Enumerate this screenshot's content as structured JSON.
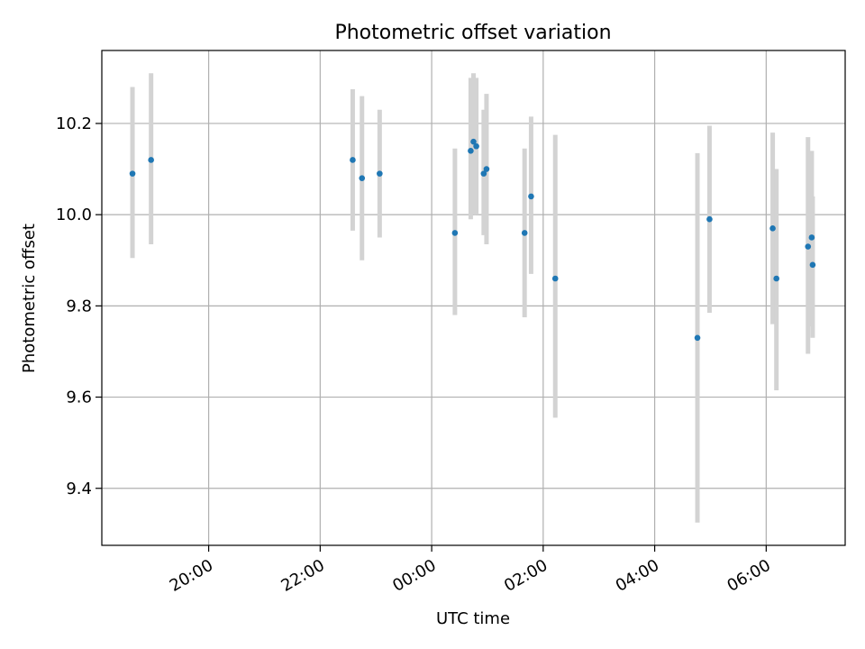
{
  "chart_data": {
    "type": "scatter",
    "title": "Photometric offset variation",
    "xlabel": "UTC time",
    "ylabel": "Photometric offset",
    "grid": true,
    "x_axis_type": "time",
    "xlim": [
      "18:05",
      "07:25"
    ],
    "ylim": [
      9.275,
      10.36
    ],
    "x_ticks": [
      "20:00",
      "22:00",
      "00:00",
      "02:00",
      "04:00",
      "06:00"
    ],
    "y_ticks": [
      "9.4",
      "9.6",
      "9.8",
      "10.0",
      "10.2"
    ],
    "colors": {
      "point": "#1f77b4",
      "errorbar": "#d3d3d3"
    },
    "series": [
      {
        "x": [
          "18:38",
          "18:58",
          "22:35",
          "22:45",
          "23:04",
          "00:25",
          "00:42",
          "00:45",
          "00:48",
          "00:56",
          "00:59",
          "01:40",
          "01:47",
          "02:13",
          "04:46",
          "04:59",
          "06:07",
          "06:11",
          "06:45",
          "06:49",
          "06:50"
        ],
        "y": [
          10.09,
          10.12,
          10.12,
          10.08,
          10.09,
          9.96,
          10.14,
          10.16,
          10.15,
          10.09,
          10.1,
          9.96,
          10.04,
          9.86,
          9.73,
          9.99,
          9.97,
          9.86,
          9.93,
          9.95,
          9.89
        ],
        "y_low": [
          9.905,
          9.935,
          9.965,
          9.9,
          9.95,
          9.78,
          9.99,
          10.0,
          10.0,
          9.955,
          9.935,
          9.775,
          9.87,
          9.555,
          9.325,
          9.785,
          9.76,
          9.615,
          9.695,
          9.755,
          9.73
        ],
        "y_high": [
          10.28,
          10.31,
          10.275,
          10.26,
          10.23,
          10.145,
          10.3,
          10.31,
          10.3,
          10.23,
          10.265,
          10.145,
          10.215,
          10.175,
          10.135,
          10.195,
          10.18,
          10.1,
          10.17,
          10.14,
          10.04
        ]
      }
    ]
  }
}
